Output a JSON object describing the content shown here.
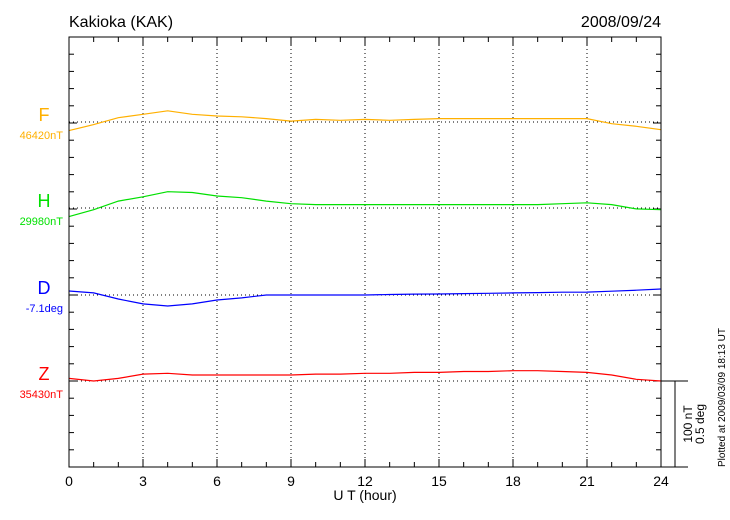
{
  "chart_data": {
    "type": "line",
    "title": "Kakioka (KAK)",
    "date": "2008/09/24",
    "xlabel": "U T (hour)",
    "xlim": [
      0,
      24
    ],
    "xticks": [
      0,
      3,
      6,
      9,
      12,
      15,
      18,
      21,
      24
    ],
    "grid": "dotted verticals every 3 hours, dotted baseline per component",
    "scale": {
      "nT_label": "100 nT",
      "deg_label": "0.5 deg",
      "nT": 100,
      "deg": 0.5
    },
    "plotted_note": "Plotted at 2009/03/09 18:13 UT",
    "x": [
      0,
      1,
      2,
      3,
      4,
      5,
      6,
      7,
      8,
      9,
      10,
      11,
      12,
      13,
      14,
      15,
      16,
      17,
      18,
      19,
      20,
      21,
      22,
      23,
      24
    ],
    "series": [
      {
        "name": "F",
        "baseline_label": "46420nT",
        "baseline": 46420,
        "unit": "nT",
        "color": "#ffb000",
        "values": [
          46410,
          46417,
          46425,
          46429,
          46433,
          46429,
          46427,
          46426,
          46424,
          46421,
          46423,
          46422,
          46423,
          46422,
          46423,
          46424,
          46424,
          46424,
          46424,
          46424,
          46424,
          46424,
          46418,
          46415,
          46411
        ]
      },
      {
        "name": "H",
        "baseline_label": "29980nT",
        "baseline": 29980,
        "unit": "nT",
        "color": "#00e000",
        "values": [
          29970,
          29978,
          29988,
          29993,
          29999,
          29998,
          29994,
          29992,
          29988,
          29985,
          29984,
          29984,
          29984,
          29984,
          29984,
          29984,
          29984,
          29984,
          29984,
          29984,
          29985,
          29986,
          29984,
          29979,
          29978
        ]
      },
      {
        "name": "D",
        "baseline_label": "-7.1deg",
        "baseline": -7.1,
        "unit": "deg",
        "color": "#0000ff",
        "values": [
          -7.077,
          -7.088,
          -7.123,
          -7.152,
          -7.164,
          -7.152,
          -7.129,
          -7.117,
          -7.1,
          -7.1,
          -7.1,
          -7.1,
          -7.1,
          -7.097,
          -7.095,
          -7.094,
          -7.092,
          -7.09,
          -7.088,
          -7.086,
          -7.084,
          -7.083,
          -7.078,
          -7.072,
          -7.065
        ]
      },
      {
        "name": "Z",
        "baseline_label": "35430nT",
        "baseline": 35430,
        "unit": "nT",
        "color": "#ff0000",
        "values": [
          35433,
          35430,
          35433,
          35438,
          35439,
          35437,
          35437,
          35437,
          35437,
          35437,
          35438,
          35438,
          35439,
          35439,
          35440,
          35440,
          35441,
          35441,
          35442,
          35442,
          35441,
          35440,
          35437,
          35432,
          35430
        ]
      }
    ]
  }
}
